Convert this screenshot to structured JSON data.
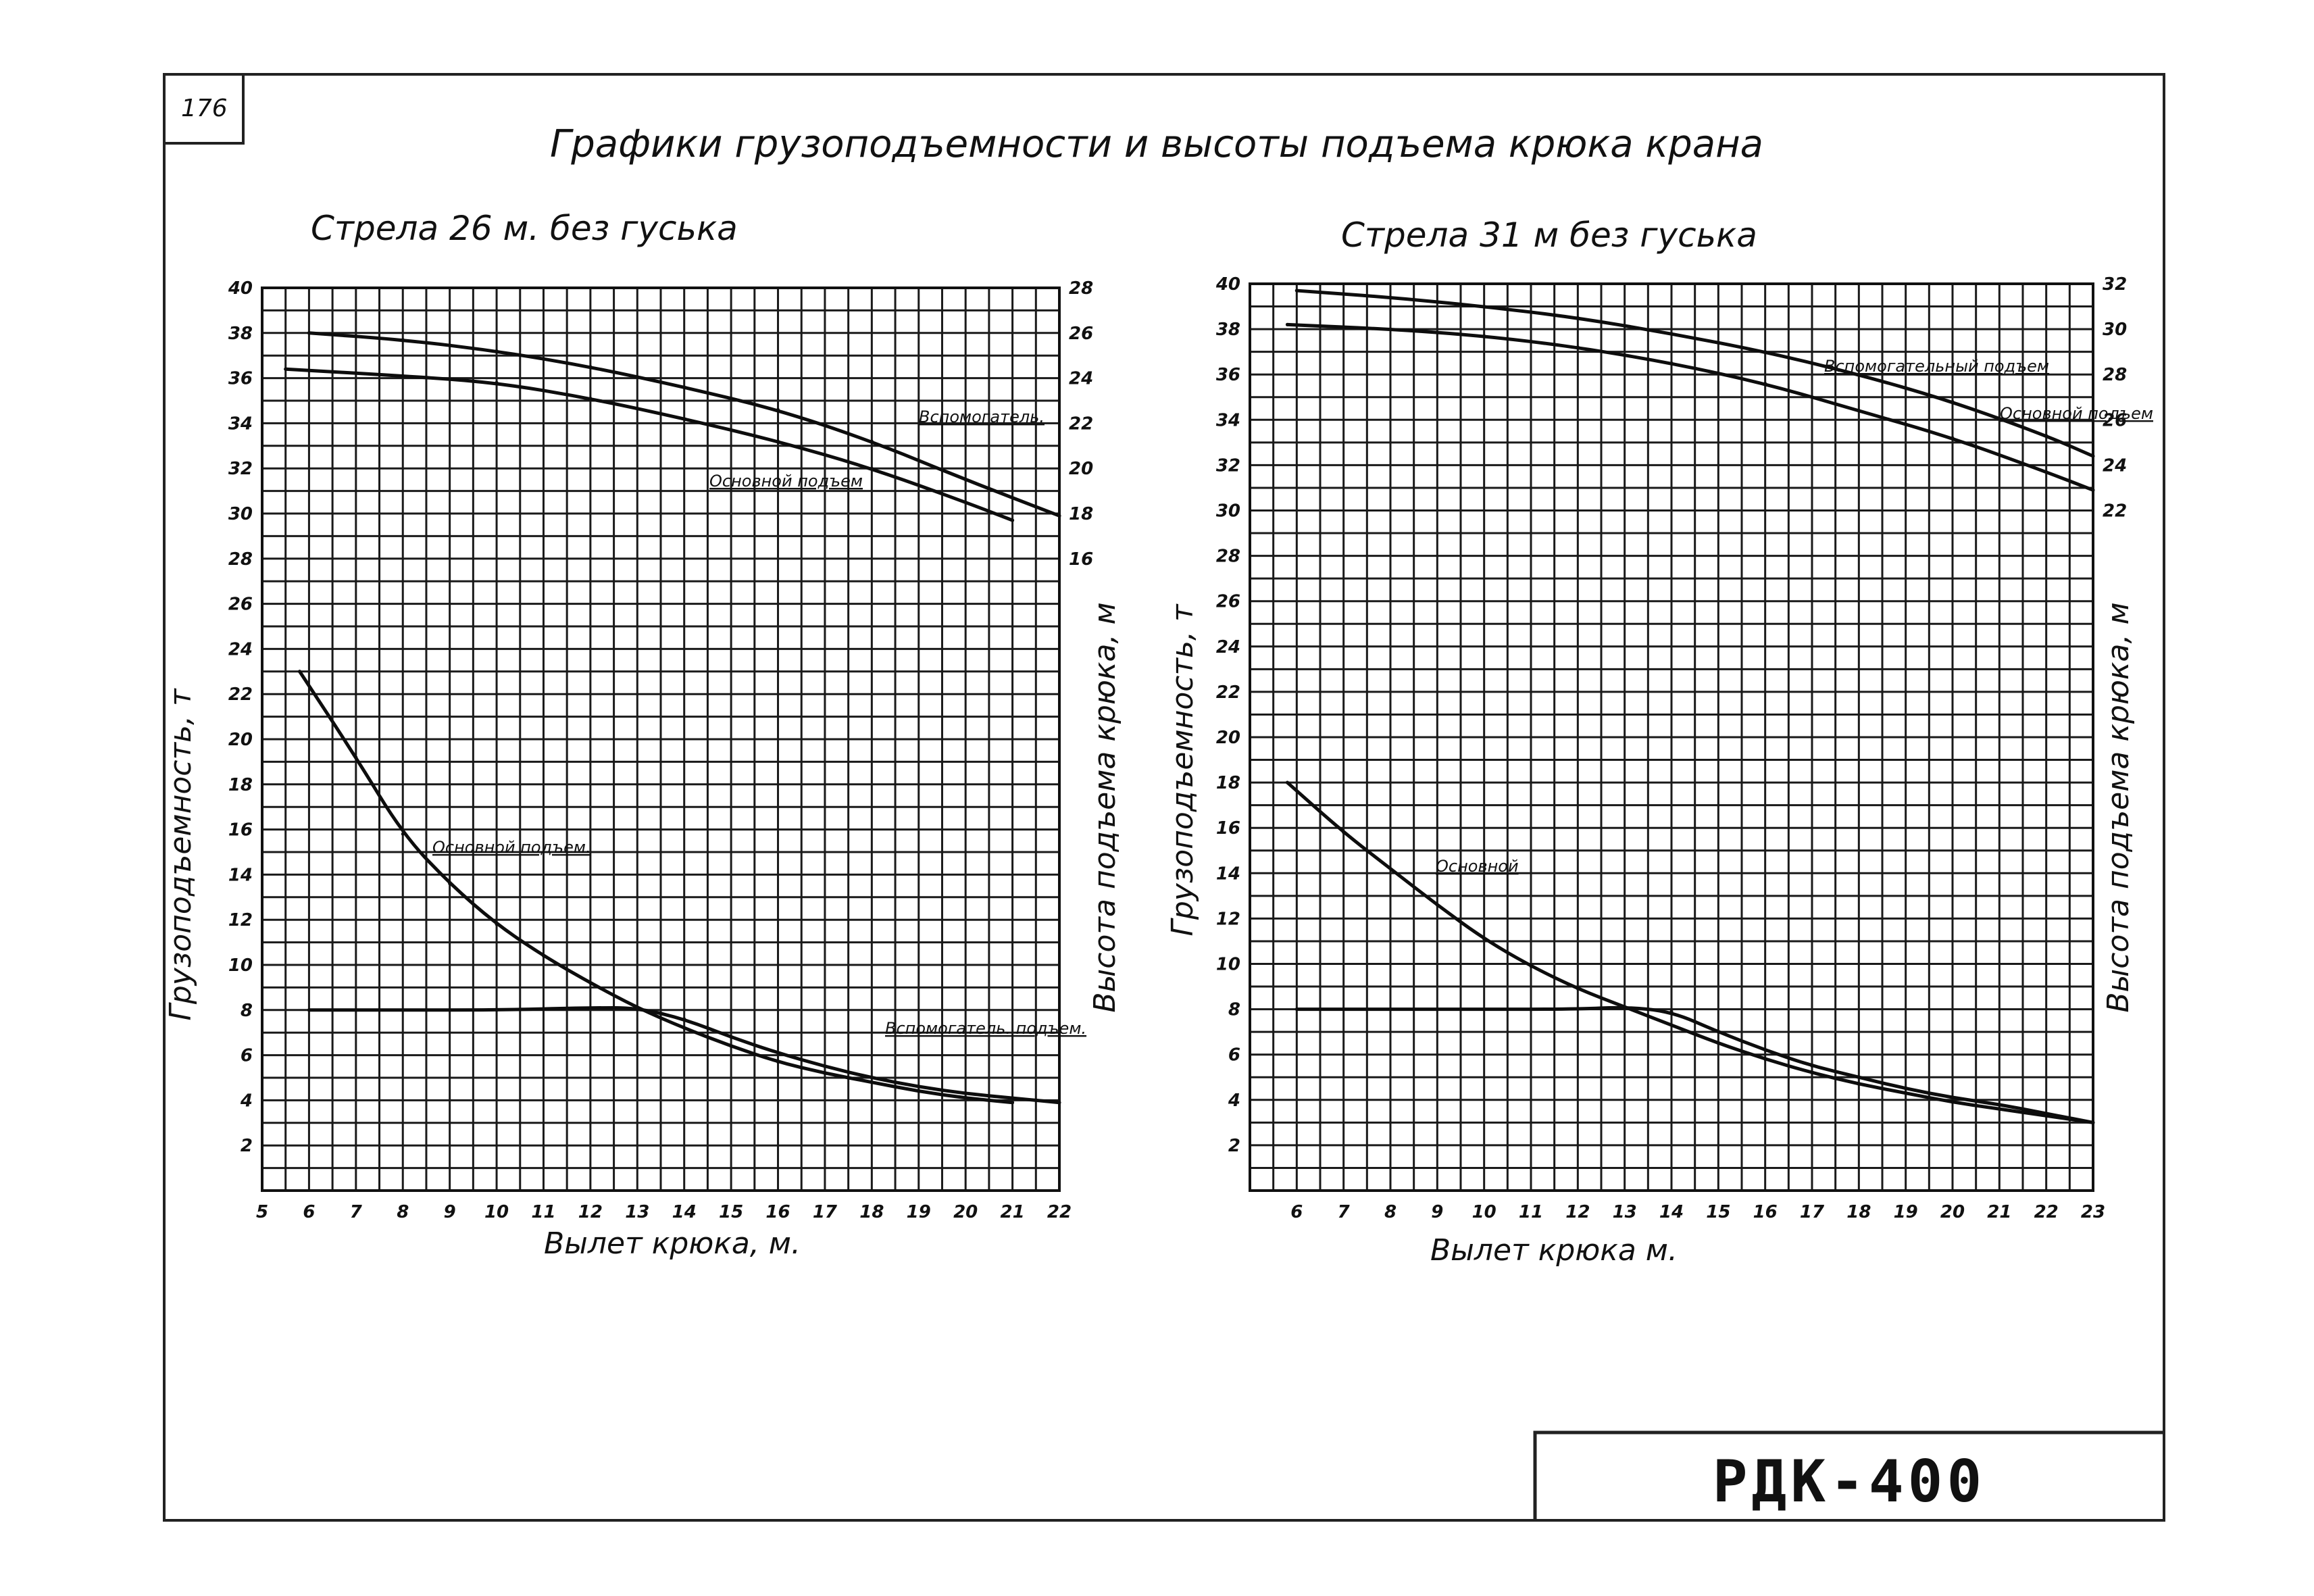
{
  "sheet": {
    "page_number": "176",
    "title": "Графики грузоподъемности и высоты подъема крюка крана",
    "stamp": "РДК-400"
  },
  "chart_data": [
    {
      "type": "line",
      "title": "Стрела 26 м. без гуська",
      "xlabel": "Вылет крюка, м.",
      "ylabel": "Грузоподъемность, т",
      "y2label": "Высота подъема крюка, м",
      "xlim": [
        5,
        22
      ],
      "ylim": [
        0,
        40
      ],
      "y2lim": [
        16,
        28
      ],
      "xticks": [
        "5",
        "6",
        "7",
        "8",
        "9",
        "10",
        "11",
        "12",
        "13",
        "14",
        "15",
        "16",
        "17",
        "18",
        "19",
        "20",
        "21",
        "22"
      ],
      "yticks": [
        "2",
        "4",
        "6",
        "8",
        "10",
        "12",
        "14",
        "16",
        "18",
        "20",
        "22",
        "24",
        "26",
        "28",
        "30",
        "32",
        "34",
        "36",
        "38",
        "40"
      ],
      "y2ticks": [
        "16",
        "18",
        "20",
        "22",
        "24",
        "26",
        "28"
      ],
      "grid": true,
      "series": [
        {
          "name": "Основной подъем",
          "axis": "left",
          "label": "Основной подъем.",
          "points": [
            [
              5.8,
              23
            ],
            [
              7,
              19.2
            ],
            [
              8,
              15.8
            ],
            [
              9,
              13.6
            ],
            [
              10,
              11.8
            ],
            [
              11,
              10.4
            ],
            [
              12,
              9.2
            ],
            [
              13,
              8.1
            ],
            [
              14,
              7.2
            ],
            [
              15,
              6.4
            ],
            [
              16,
              5.7
            ],
            [
              17,
              5.2
            ],
            [
              18,
              4.8
            ],
            [
              19,
              4.4
            ],
            [
              20,
              4.1
            ],
            [
              21,
              3.9
            ]
          ]
        },
        {
          "name": "Вспомогательный подъем",
          "axis": "left",
          "label": "Вспомогатель. подъем.",
          "points": [
            [
              6,
              8
            ],
            [
              8,
              8
            ],
            [
              10,
              8
            ],
            [
              12,
              8.1
            ],
            [
              13,
              8.1
            ],
            [
              14,
              7.6
            ],
            [
              15,
              6.8
            ],
            [
              16,
              6.1
            ],
            [
              17,
              5.5
            ],
            [
              18,
              5.0
            ],
            [
              19,
              4.6
            ],
            [
              20,
              4.3
            ],
            [
              21,
              4.1
            ],
            [
              22,
              3.9
            ]
          ]
        },
        {
          "name": "Вспомогатель.",
          "axis": "right",
          "label": "Вспомогатель.",
          "points": [
            [
              6,
              26
            ],
            [
              8,
              25.7
            ],
            [
              10,
              25.2
            ],
            [
              12,
              24.5
            ],
            [
              14,
              23.6
            ],
            [
              16,
              22.6
            ],
            [
              18,
              21.2
            ],
            [
              20,
              19.5
            ],
            [
              22,
              17.9
            ]
          ]
        },
        {
          "name": "Основной подъем",
          "axis": "right",
          "label": "Основной подъем",
          "points": [
            [
              5.5,
              24.4
            ],
            [
              8,
              24.1
            ],
            [
              10,
              23.8
            ],
            [
              12,
              23.1
            ],
            [
              14,
              22.2
            ],
            [
              16,
              21.2
            ],
            [
              18,
              20.0
            ],
            [
              20,
              18.5
            ],
            [
              21,
              17.7
            ]
          ]
        }
      ]
    },
    {
      "type": "line",
      "title": "Стрела 31 м без гуська",
      "xlabel": "Вылет крюка м.",
      "ylabel": "Грузоподъемность, т",
      "y2label": "Высота подъема крюка, м",
      "xlim": [
        5,
        23
      ],
      "ylim": [
        0,
        40
      ],
      "y2lim": [
        22,
        32
      ],
      "xticks": [
        "6",
        "7",
        "8",
        "9",
        "10",
        "11",
        "12",
        "13",
        "14",
        "15",
        "16",
        "17",
        "18",
        "19",
        "20",
        "21",
        "22",
        "23"
      ],
      "yticks": [
        "2",
        "4",
        "6",
        "8",
        "10",
        "12",
        "14",
        "16",
        "18",
        "20",
        "22",
        "24",
        "26",
        "28",
        "30",
        "32",
        "34",
        "36",
        "38",
        "40"
      ],
      "y2ticks": [
        "22",
        "24",
        "26",
        "28",
        "30",
        "32"
      ],
      "grid": true,
      "series": [
        {
          "name": "Основной",
          "axis": "left",
          "label": "Основной",
          "points": [
            [
              5.8,
              18
            ],
            [
              7,
              15.8
            ],
            [
              8,
              14.2
            ],
            [
              9,
              12.6
            ],
            [
              10,
              11.1
            ],
            [
              11,
              9.9
            ],
            [
              12,
              8.9
            ],
            [
              13,
              8.1
            ],
            [
              14,
              7.3
            ],
            [
              15,
              6.5
            ],
            [
              16,
              5.8
            ],
            [
              17,
              5.2
            ],
            [
              18,
              4.7
            ],
            [
              19,
              4.3
            ],
            [
              20,
              3.9
            ],
            [
              21,
              3.6
            ],
            [
              22,
              3.3
            ],
            [
              23,
              3.0
            ]
          ]
        },
        {
          "name": "Вспомогательный",
          "axis": "left",
          "label": "",
          "points": [
            [
              6,
              8
            ],
            [
              8,
              8
            ],
            [
              10,
              8
            ],
            [
              12,
              8
            ],
            [
              13,
              8.1
            ],
            [
              14,
              7.9
            ],
            [
              15,
              7.0
            ],
            [
              16,
              6.2
            ],
            [
              17,
              5.5
            ],
            [
              18,
              5.0
            ],
            [
              19,
              4.5
            ],
            [
              20,
              4.1
            ],
            [
              21,
              3.8
            ],
            [
              22,
              3.4
            ],
            [
              23,
              3.0
            ]
          ]
        },
        {
          "name": "Вспомогательный подъем",
          "axis": "right",
          "label": "Вспомогательный подъем",
          "points": [
            [
              6,
              31.7
            ],
            [
              8,
              31.4
            ],
            [
              10,
              31.0
            ],
            [
              12,
              30.5
            ],
            [
              14,
              29.8
            ],
            [
              16,
              29.0
            ],
            [
              18,
              28.0
            ],
            [
              20,
              26.8
            ],
            [
              22,
              25.3
            ],
            [
              23,
              24.4
            ]
          ]
        },
        {
          "name": "Основной подъем",
          "axis": "right",
          "label": "Основной подъем",
          "points": [
            [
              5.8,
              30.2
            ],
            [
              8,
              30.0
            ],
            [
              10,
              29.7
            ],
            [
              12,
              29.2
            ],
            [
              14,
              28.5
            ],
            [
              16,
              27.6
            ],
            [
              18,
              26.4
            ],
            [
              20,
              25.2
            ],
            [
              22,
              23.7
            ],
            [
              23,
              22.9
            ]
          ]
        }
      ]
    }
  ]
}
